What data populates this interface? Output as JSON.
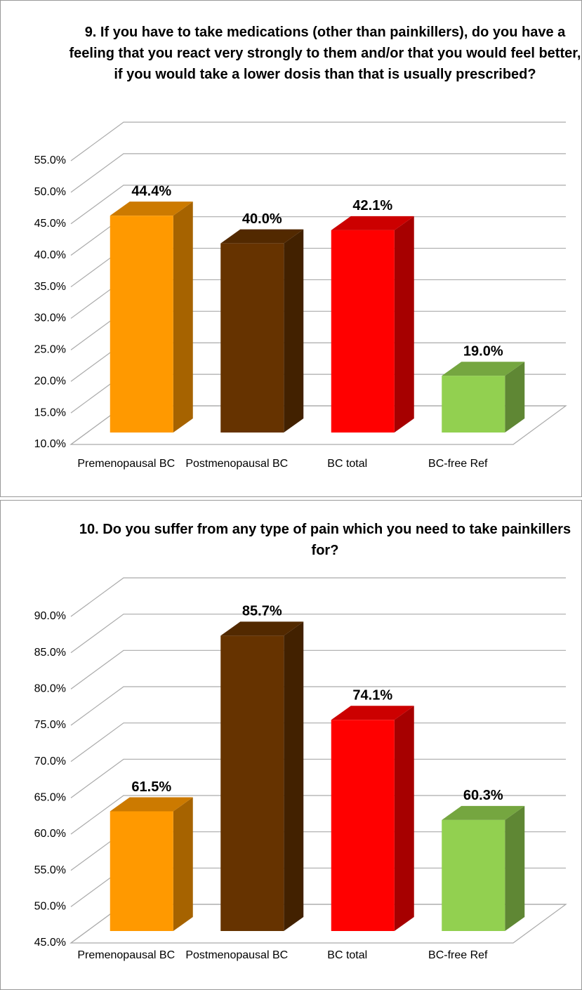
{
  "chart_data": [
    {
      "type": "bar3d",
      "title": "9. If you have to take medications (other than painkillers), do you have a feeling that you react very strongly to them and/or that you would feel better, if you would take a lower dosis than that is usually prescribed?",
      "categories": [
        "Premenopausal BC",
        "Postmenopausal BC",
        "BC total",
        "BC-free Ref"
      ],
      "values": [
        44.4,
        40.0,
        42.1,
        19.0
      ],
      "value_labels": [
        "44.4%",
        "40.0%",
        "42.1%",
        "19.0%"
      ],
      "colors": [
        "#ff9900",
        "#663300",
        "#ff0000",
        "#92d050"
      ],
      "ylim": [
        10,
        55
      ],
      "yticks": [
        {
          "value": 10,
          "label": "10.0%"
        },
        {
          "value": 15,
          "label": "15.0%"
        },
        {
          "value": 20,
          "label": "20.0%"
        },
        {
          "value": 25,
          "label": "25.0%"
        },
        {
          "value": 30,
          "label": "30.0%"
        },
        {
          "value": 35,
          "label": "35.0%"
        },
        {
          "value": 40,
          "label": "40.0%"
        },
        {
          "value": 45,
          "label": "45.0%"
        },
        {
          "value": 50,
          "label": "50.0%"
        },
        {
          "value": 55,
          "label": "55.0%"
        }
      ],
      "grid": true
    },
    {
      "type": "bar3d",
      "title": "10. Do you suffer from any type of pain which you need to take painkillers for?",
      "categories": [
        "Premenopausal BC",
        "Postmenopausal BC",
        "BC total",
        "BC-free Ref"
      ],
      "values": [
        61.5,
        85.7,
        74.1,
        60.3
      ],
      "value_labels": [
        "61.5%",
        "85.7%",
        "74.1%",
        "60.3%"
      ],
      "colors": [
        "#ff9900",
        "#663300",
        "#ff0000",
        "#92d050"
      ],
      "ylim": [
        45,
        90
      ],
      "yticks": [
        {
          "value": 45,
          "label": "45.0%"
        },
        {
          "value": 50,
          "label": "50.0%"
        },
        {
          "value": 55,
          "label": "55.0%"
        },
        {
          "value": 60,
          "label": "60.0%"
        },
        {
          "value": 65,
          "label": "65.0%"
        },
        {
          "value": 70,
          "label": "70.0%"
        },
        {
          "value": 75,
          "label": "75.0%"
        },
        {
          "value": 80,
          "label": "80.0%"
        },
        {
          "value": 85,
          "label": "85.0%"
        },
        {
          "value": 90,
          "label": "90.0%"
        }
      ],
      "grid": true
    }
  ]
}
